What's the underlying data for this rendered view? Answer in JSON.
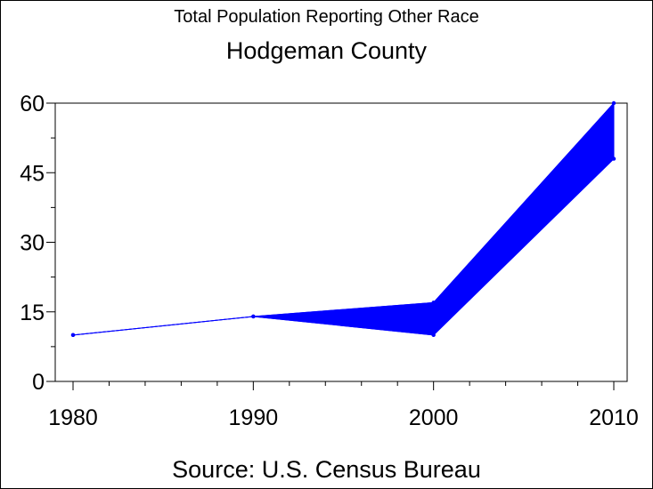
{
  "chart_data": {
    "type": "area",
    "title": "Total Population Reporting Other Race",
    "subtitle": "Hodgeman County",
    "footnote": "Source: U.S. Census Bureau",
    "xlabel": "",
    "ylabel": "",
    "x": [
      1980,
      1990,
      2000,
      2010
    ],
    "x_tick_labels": [
      "1980",
      "1990",
      "2000",
      "2010"
    ],
    "y_tick_labels": [
      "0",
      "15",
      "30",
      "45",
      "60"
    ],
    "xlim": [
      1980,
      2010
    ],
    "ylim": [
      0,
      60
    ],
    "y_ticks": [
      0,
      15,
      30,
      45,
      60
    ],
    "series": [
      {
        "values": [
          10,
          14,
          10,
          48
        ]
      },
      {
        "values": [
          10,
          14,
          17,
          60
        ]
      }
    ],
    "color": "#0000ff",
    "grid": false,
    "legend": "none"
  }
}
